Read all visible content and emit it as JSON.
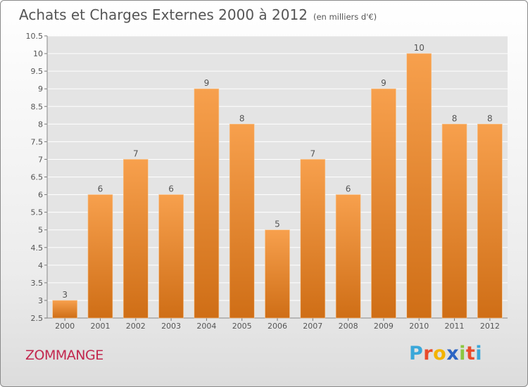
{
  "title": "Achats et Charges Externes 2000 à 2012",
  "subtitle": "(en milliers d'€)",
  "location": "ZOMMANGE",
  "brand": {
    "letters": [
      "P",
      "r",
      "o",
      "x",
      "i",
      "t",
      "i"
    ],
    "colors": [
      "#3aa7d9",
      "#e94b2b",
      "#f3b300",
      "#2b64c4",
      "#8cc63f",
      "#e94b2b",
      "#3aa7d9"
    ]
  },
  "colors": {
    "bar_top": "#f7a04d",
    "bar_bottom": "#cf6e16",
    "grid": "#ffffff",
    "text": "#555555"
  },
  "chart_data": {
    "type": "bar",
    "title": "Achats et Charges Externes 2000 à 2012",
    "subtitle": "(en milliers d'€)",
    "categories": [
      "2000",
      "2001",
      "2002",
      "2003",
      "2004",
      "2005",
      "2006",
      "2007",
      "2008",
      "2009",
      "2010",
      "2011",
      "2012"
    ],
    "values": [
      3,
      6,
      7,
      6,
      9,
      8,
      5,
      7,
      6,
      9,
      10,
      8,
      8
    ],
    "ylim": [
      2.5,
      10.5
    ],
    "yticks": [
      "2.5",
      "3",
      "3.5",
      "4",
      "4.5",
      "5",
      "5.5",
      "6",
      "6.5",
      "7",
      "7.5",
      "8",
      "8.5",
      "9",
      "9.5",
      "10",
      "10.5"
    ],
    "grid": true,
    "data_labels": true
  }
}
